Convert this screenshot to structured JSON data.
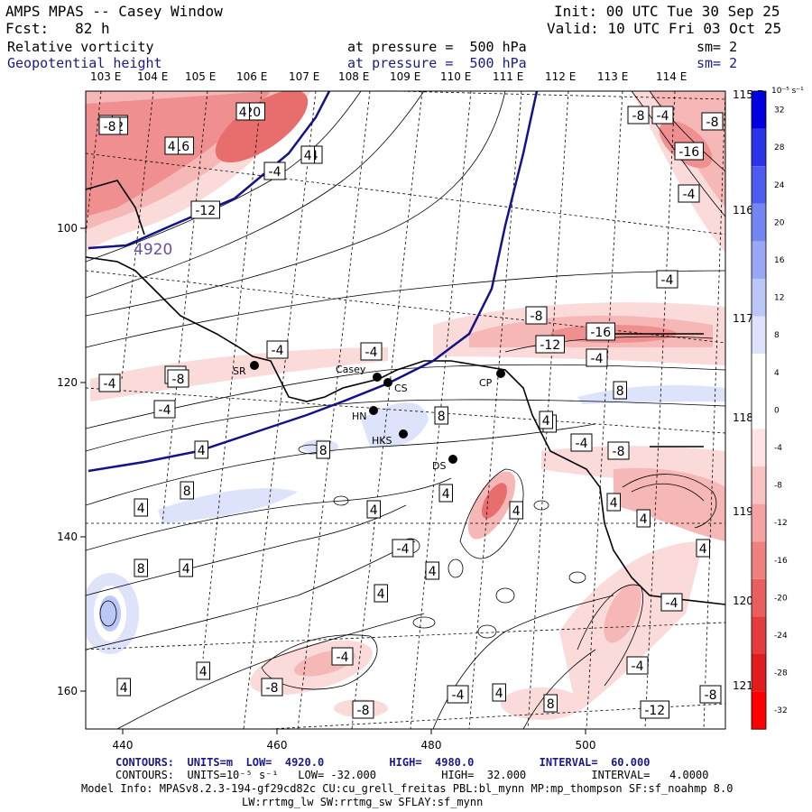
{
  "header": {
    "model": "AMPS MPAS -- Casey Window",
    "init": "Init: 00 UTC Tue 30 Sep 25",
    "fcst": "Fcst:   82 h",
    "valid": "Valid: 10 UTC Fri 03 Oct 25"
  },
  "fields": [
    {
      "name": "Relative vorticity",
      "level": "at pressure =  500 hPa",
      "sm": "sm= 2"
    },
    {
      "name": "Geopotential height",
      "level": "at pressure =  500 hPa",
      "sm": "sm= 2"
    }
  ],
  "top_lon_labels": [
    "103 E",
    "104 E",
    "105 E",
    "106 E",
    "107 E",
    "108 E",
    "109 E",
    "110 E",
    "111 E",
    "112 E",
    "113 E",
    "114 E"
  ],
  "right_lon_labels": [
    "115 E",
    "116 E",
    "117 E",
    "118 E",
    "119 E",
    "120 E",
    "121 E"
  ],
  "x_axis": [
    "440",
    "460",
    "480",
    "500"
  ],
  "y_axis": [
    "100",
    "120",
    "140",
    "160"
  ],
  "colorbar": {
    "unit": "10⁻⁵ s⁻¹",
    "ticks": [
      "32",
      "28",
      "24",
      "20",
      "16",
      "12",
      "8",
      "4",
      "0",
      "-4",
      "-8",
      "-12",
      "-16",
      "-20",
      "-24",
      "-28",
      "-32"
    ],
    "colors": [
      "#0000e0",
      "#2a33e8",
      "#4d5cee",
      "#7386f2",
      "#98a8f5",
      "#bcc7f8",
      "#dce3fb",
      "#ffffff",
      "#ffffff",
      "#fde3e3",
      "#f9c3c3",
      "#f4a2a2",
      "#ef8080",
      "#e95e5e",
      "#e43c3c",
      "#e01c1c",
      "#ff0000"
    ]
  },
  "stations": [
    "SR",
    "Casey",
    "CS",
    "CP",
    "HN",
    "HKS",
    "DS"
  ],
  "height_label": "4920",
  "contour_labels": [
    "-12",
    "-12",
    "-20",
    "-16",
    "-8",
    "-4",
    "-12",
    "-4",
    "-8",
    "-4",
    "-8",
    "-16",
    "-4",
    "-4",
    "-4",
    "-8",
    "-12",
    "-16",
    "-4",
    "-4",
    "-8",
    "-4",
    "-8",
    "-4",
    "-8",
    "8",
    "8",
    "4",
    "4",
    "8",
    "8",
    "4",
    "8",
    "4",
    "4",
    "4",
    "4",
    "4",
    "4",
    "4",
    "-4",
    "4",
    "-4",
    "-8",
    "4",
    "-8",
    "-4",
    "4",
    "8",
    "4",
    "-4",
    "-12",
    "-8",
    "-4",
    "4",
    "4",
    "4",
    "-8",
    "4",
    "4",
    "-4",
    "4"
  ],
  "footer": {
    "line1": "CONTOURS:  UNITS=m  LOW=  4920.0          HIGH=  4980.0          INTERVAL=  60.000",
    "line2": "CONTOURS:  UNITS=10⁻⁵ s⁻¹   LOW= -32.000          HIGH=  32.000          INTERVAL=   4.0000",
    "line3": "Model Info: MPASv8.2.3-194-gf29cd82c CU:cu_grell_freitas PBL:bl_mynn MP:mp_thompson SF:sf_noahmp 8.0",
    "line4": "LW:rrtmg_lw SW:rrtmg_sw SFLAY:sf_mynn"
  }
}
